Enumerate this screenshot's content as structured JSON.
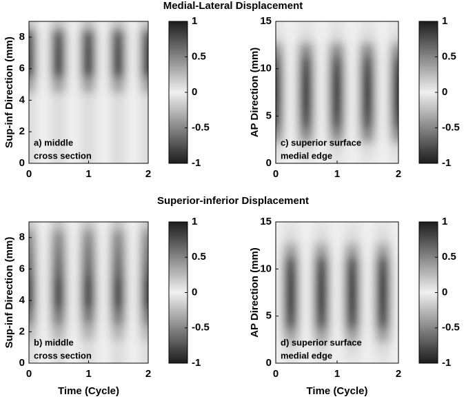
{
  "chart_data": [
    {
      "type": "heatmap",
      "title": "Medial-Lateral Displacement",
      "ylabel": "Sup-inf Direction (mm)",
      "annotation": [
        "a) middle",
        "cross section"
      ],
      "x": [
        0,
        0.25,
        0.5,
        0.75,
        1,
        1.25,
        1.5,
        1.75,
        2
      ],
      "y": [
        0,
        1,
        2,
        3,
        4,
        5,
        6,
        7,
        8,
        9
      ],
      "z": [
        [
          0.1,
          0,
          -0.1,
          0,
          0.1,
          0,
          -0.1,
          0,
          0.1
        ],
        [
          0.1,
          0,
          -0.1,
          0,
          0.1,
          0,
          -0.1,
          0,
          0.1
        ],
        [
          0.1,
          0,
          -0.1,
          0,
          0.1,
          0,
          -0.1,
          0,
          0.1
        ],
        [
          0.1,
          0,
          -0.1,
          0,
          0.1,
          0,
          -0.1,
          0,
          0.1
        ],
        [
          0.1,
          0,
          -0.1,
          0,
          0.1,
          0,
          -0.1,
          0,
          0.1
        ],
        [
          0.4,
          0,
          -0.4,
          0,
          0.4,
          0,
          -0.4,
          0,
          0.4
        ],
        [
          0.9,
          0,
          -0.9,
          0,
          0.9,
          0,
          -0.9,
          0,
          0.9
        ],
        [
          0.9,
          0,
          -0.9,
          0,
          0.9,
          0,
          -0.9,
          0,
          0.9
        ],
        [
          0.8,
          0,
          -0.8,
          0,
          0.8,
          0,
          -0.8,
          0,
          0.8
        ],
        [
          0.2,
          0,
          -0.2,
          0,
          0.2,
          0,
          -0.2,
          0,
          0.2
        ]
      ],
      "xlim": [
        0,
        2
      ],
      "xticks": [
        0,
        1,
        2
      ],
      "ylim": [
        0,
        9
      ],
      "yticks": [
        0,
        2,
        4,
        6,
        8
      ],
      "clim": [
        -1,
        1
      ],
      "cticks": [
        -1,
        -0.5,
        0,
        0.5,
        1
      ]
    },
    {
      "type": "heatmap",
      "ylabel": "AP Direction (mm)",
      "annotation": [
        "c) superior surface",
        "medial edge"
      ],
      "x": [
        0,
        0.25,
        0.5,
        0.75,
        1,
        1.25,
        1.5,
        1.75,
        2
      ],
      "y": [
        0,
        1.5,
        3,
        4.5,
        6,
        7.5,
        9,
        10.5,
        12,
        13.5,
        15
      ],
      "z": [
        [
          0.05,
          0,
          -0.05,
          0,
          0.05,
          0,
          -0.05,
          0,
          0.05
        ],
        [
          0.1,
          0,
          -0.1,
          0,
          0.1,
          0,
          -0.1,
          0,
          0.1
        ],
        [
          0.5,
          0,
          -0.5,
          0,
          0.5,
          0,
          -0.5,
          0,
          0.5
        ],
        [
          0.8,
          0,
          -0.8,
          0,
          0.8,
          0,
          -0.8,
          0,
          0.8
        ],
        [
          0.95,
          0,
          -0.95,
          0,
          0.95,
          0,
          -0.95,
          0,
          0.95
        ],
        [
          1,
          0,
          -1,
          0,
          1,
          0,
          -1,
          0,
          1
        ],
        [
          0.95,
          0,
          -0.95,
          0,
          0.95,
          0,
          -0.95,
          0,
          0.95
        ],
        [
          0.8,
          0,
          -0.8,
          0,
          0.8,
          0,
          -0.8,
          0,
          0.8
        ],
        [
          0.5,
          0,
          -0.5,
          0,
          0.5,
          0,
          -0.5,
          0,
          0.5
        ],
        [
          0.1,
          0,
          -0.1,
          0,
          0.1,
          0,
          -0.1,
          0,
          0.1
        ],
        [
          0.05,
          0,
          -0.05,
          0,
          0.05,
          0,
          -0.05,
          0,
          0.05
        ]
      ],
      "xlim": [
        0,
        2
      ],
      "xticks": [
        0,
        1,
        2
      ],
      "ylim": [
        0,
        15
      ],
      "yticks": [
        0,
        5,
        10,
        15
      ],
      "clim": [
        -1,
        1
      ],
      "cticks": [
        -1,
        -0.5,
        0,
        0.5,
        1
      ]
    },
    {
      "type": "heatmap",
      "title": "Superior-inferior Displacement",
      "ylabel": "Sup-inf Direction (mm)",
      "xlabel": "Time (Cycle)",
      "annotation": [
        "b) middle",
        "cross section"
      ],
      "x": [
        0,
        0.25,
        0.5,
        0.75,
        1,
        1.25,
        1.5,
        1.75,
        2
      ],
      "y": [
        0,
        1,
        2,
        3,
        4,
        5,
        6,
        7,
        8,
        9
      ],
      "z": [
        [
          0.1,
          0,
          -0.1,
          0,
          0.1,
          0,
          -0.1,
          0,
          0.1
        ],
        [
          0.1,
          0,
          -0.1,
          0,
          0.1,
          0,
          -0.1,
          0,
          0.1
        ],
        [
          0.3,
          0,
          -0.3,
          0,
          0.3,
          0,
          -0.3,
          0,
          0.3
        ],
        [
          0.6,
          0,
          -0.6,
          0,
          0.6,
          0,
          -0.6,
          0,
          0.6
        ],
        [
          0.9,
          0,
          -0.9,
          0,
          0.9,
          0,
          -0.9,
          0,
          0.9
        ],
        [
          0.9,
          0,
          -0.9,
          0,
          0.9,
          0,
          -0.9,
          0,
          0.9
        ],
        [
          0.7,
          0,
          -0.7,
          0,
          0.7,
          0,
          -0.7,
          0,
          0.7
        ],
        [
          0.6,
          0,
          -0.6,
          0,
          0.6,
          0,
          -0.6,
          0,
          0.6
        ],
        [
          0.5,
          0,
          -0.5,
          0,
          0.5,
          0,
          -0.5,
          0,
          0.5
        ],
        [
          0.2,
          0,
          -0.2,
          0,
          0.2,
          0,
          -0.2,
          0,
          0.2
        ]
      ],
      "xlim": [
        0,
        2
      ],
      "xticks": [
        0,
        1,
        2
      ],
      "ylim": [
        0,
        9
      ],
      "yticks": [
        0,
        2,
        4,
        6,
        8
      ],
      "clim": [
        -1,
        1
      ],
      "cticks": [
        -1,
        -0.5,
        0,
        0.5,
        1
      ]
    },
    {
      "type": "heatmap",
      "ylabel": "AP Direction (mm)",
      "xlabel": "Time (Cycle)",
      "annotation": [
        "d) superior surface",
        "medial edge"
      ],
      "x": [
        0,
        0.25,
        0.5,
        0.75,
        1,
        1.25,
        1.5,
        1.75,
        2
      ],
      "y": [
        0,
        1.5,
        3,
        4.5,
        6,
        7.5,
        9,
        10.5,
        12,
        13.5,
        15
      ],
      "z": [
        [
          0,
          0.05,
          0,
          -0.05,
          0,
          0.05,
          0,
          -0.05,
          0
        ],
        [
          0,
          0.1,
          0,
          -0.1,
          0,
          0.1,
          0,
          -0.1,
          0
        ],
        [
          0,
          0.4,
          0,
          -0.4,
          0,
          0.4,
          0,
          -0.4,
          0
        ],
        [
          0,
          0.8,
          0,
          -0.8,
          0,
          0.8,
          0,
          -0.8,
          0
        ],
        [
          0,
          0.95,
          0,
          -0.95,
          0,
          0.95,
          0,
          -0.95,
          0
        ],
        [
          0,
          1,
          0,
          -1,
          0,
          1,
          0,
          -1,
          0
        ],
        [
          0,
          0.95,
          0,
          -0.95,
          0,
          0.95,
          0,
          -0.95,
          0
        ],
        [
          0,
          0.8,
          0,
          -0.8,
          0,
          0.8,
          0,
          -0.8,
          0
        ],
        [
          0,
          0.4,
          0,
          -0.4,
          0,
          0.4,
          0,
          -0.4,
          0
        ],
        [
          0,
          0.1,
          0,
          -0.1,
          0,
          0.1,
          0,
          -0.1,
          0
        ],
        [
          0,
          0.05,
          0,
          -0.05,
          0,
          0.05,
          0,
          -0.05,
          0
        ]
      ],
      "xlim": [
        0,
        2
      ],
      "xticks": [
        0,
        1,
        2
      ],
      "ylim": [
        0,
        15
      ],
      "yticks": [
        0,
        5,
        10,
        15
      ],
      "clim": [
        -1,
        1
      ],
      "cticks": [
        -1,
        -0.5,
        0,
        0.5,
        1
      ]
    }
  ]
}
